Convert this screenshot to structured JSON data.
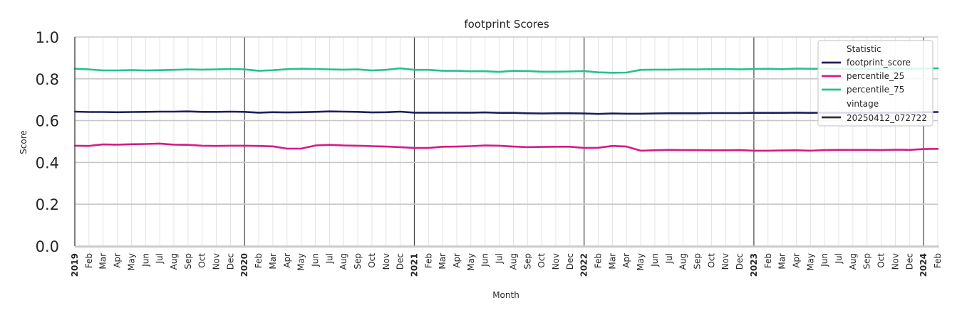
{
  "chart_data": {
    "type": "line",
    "title": "footprint Scores",
    "xlabel": "Month",
    "ylabel": "Score",
    "ylim": [
      0.0,
      1.0
    ],
    "yticks": [
      "0.0",
      "0.2",
      "0.4",
      "0.6",
      "0.8",
      "1.0"
    ],
    "grid": true,
    "legend_position": "upper right",
    "legend": {
      "title": "Statistic",
      "entries": [
        "footprint_score",
        "percentile_25",
        "percentile_75"
      ],
      "subtitle": "vintage",
      "sub_entries": [
        "20250412_072722"
      ]
    },
    "x": [
      "2019-01",
      "2019-02",
      "2019-03",
      "2019-04",
      "2019-05",
      "2019-06",
      "2019-07",
      "2019-08",
      "2019-09",
      "2019-10",
      "2019-11",
      "2019-12",
      "2020-01",
      "2020-02",
      "2020-03",
      "2020-04",
      "2020-05",
      "2020-06",
      "2020-07",
      "2020-08",
      "2020-09",
      "2020-10",
      "2020-11",
      "2020-12",
      "2021-01",
      "2021-02",
      "2021-03",
      "2021-04",
      "2021-05",
      "2021-06",
      "2021-07",
      "2021-08",
      "2021-09",
      "2021-10",
      "2021-11",
      "2021-12",
      "2022-01",
      "2022-02",
      "2022-03",
      "2022-04",
      "2022-05",
      "2022-06",
      "2022-07",
      "2022-08",
      "2022-09",
      "2022-10",
      "2022-11",
      "2022-12",
      "2023-01",
      "2023-02",
      "2023-03",
      "2023-04",
      "2023-05",
      "2023-06",
      "2023-07",
      "2023-08",
      "2023-09",
      "2023-10",
      "2023-11",
      "2023-12",
      "2024-01",
      "2024-02"
    ],
    "tick_labels": [
      "2019",
      "Feb",
      "Mar",
      "Apr",
      "May",
      "Jun",
      "Jul",
      "Aug",
      "Sep",
      "Oct",
      "Nov",
      "Dec",
      "2020",
      "Feb",
      "Mar",
      "Apr",
      "May",
      "Jun",
      "Jul",
      "Aug",
      "Sep",
      "Oct",
      "Nov",
      "Dec",
      "2021",
      "Feb",
      "Mar",
      "Apr",
      "May",
      "Jun",
      "Jul",
      "Aug",
      "Sep",
      "Oct",
      "Nov",
      "Dec",
      "2022",
      "Feb",
      "Mar",
      "Apr",
      "May",
      "Jun",
      "Jul",
      "Aug",
      "Sep",
      "Oct",
      "Nov",
      "Dec",
      "2023",
      "Feb",
      "Mar",
      "Apr",
      "May",
      "Jun",
      "Jul",
      "Aug",
      "Sep",
      "Oct",
      "Nov",
      "Dec",
      "2024",
      "Feb"
    ],
    "series": [
      {
        "name": "footprint_score",
        "color": "#1f1f5a",
        "values": [
          0.643,
          0.641,
          0.641,
          0.64,
          0.641,
          0.642,
          0.643,
          0.643,
          0.644,
          0.642,
          0.642,
          0.643,
          0.642,
          0.638,
          0.64,
          0.639,
          0.64,
          0.642,
          0.644,
          0.643,
          0.642,
          0.639,
          0.64,
          0.643,
          0.638,
          0.638,
          0.638,
          0.638,
          0.638,
          0.639,
          0.637,
          0.637,
          0.635,
          0.634,
          0.635,
          0.635,
          0.634,
          0.632,
          0.634,
          0.633,
          0.633,
          0.634,
          0.635,
          0.635,
          0.635,
          0.636,
          0.636,
          0.636,
          0.637,
          0.637,
          0.637,
          0.638,
          0.637,
          0.638,
          0.638,
          0.638,
          0.638,
          0.638,
          0.638,
          0.638,
          0.64,
          0.641
        ]
      },
      {
        "name": "percentile_25",
        "color": "#d41b87",
        "values": [
          0.48,
          0.479,
          0.486,
          0.485,
          0.487,
          0.488,
          0.49,
          0.485,
          0.484,
          0.48,
          0.479,
          0.48,
          0.48,
          0.479,
          0.477,
          0.466,
          0.466,
          0.481,
          0.484,
          0.481,
          0.48,
          0.478,
          0.476,
          0.473,
          0.469,
          0.469,
          0.475,
          0.476,
          0.478,
          0.481,
          0.48,
          0.476,
          0.473,
          0.474,
          0.475,
          0.475,
          0.469,
          0.47,
          0.479,
          0.476,
          0.456,
          0.458,
          0.46,
          0.459,
          0.459,
          0.458,
          0.458,
          0.459,
          0.456,
          0.456,
          0.457,
          0.458,
          0.456,
          0.459,
          0.46,
          0.46,
          0.46,
          0.459,
          0.461,
          0.46,
          0.464,
          0.465
        ]
      },
      {
        "name": "percentile_75",
        "color": "#23c28f",
        "values": [
          0.848,
          0.845,
          0.84,
          0.84,
          0.842,
          0.84,
          0.841,
          0.843,
          0.845,
          0.844,
          0.845,
          0.847,
          0.845,
          0.838,
          0.841,
          0.846,
          0.848,
          0.847,
          0.845,
          0.844,
          0.845,
          0.84,
          0.843,
          0.85,
          0.843,
          0.843,
          0.838,
          0.838,
          0.836,
          0.836,
          0.833,
          0.838,
          0.837,
          0.834,
          0.834,
          0.835,
          0.837,
          0.831,
          0.829,
          0.83,
          0.843,
          0.844,
          0.844,
          0.845,
          0.845,
          0.846,
          0.847,
          0.845,
          0.847,
          0.848,
          0.846,
          0.849,
          0.848,
          0.848,
          0.847,
          0.848,
          0.848,
          0.848,
          0.848,
          0.848,
          0.849,
          0.85
        ]
      }
    ],
    "vintage_color": "#333333"
  }
}
